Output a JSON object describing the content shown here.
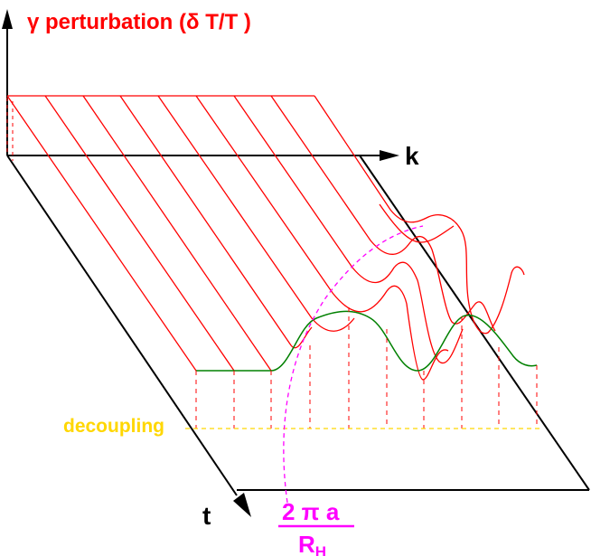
{
  "labels": {
    "y_axis": "γ perturbation  (δ T/T )",
    "k_axis": "k",
    "t_axis": "t",
    "decoupling": "decoupling",
    "horizon_numerator": "2 π a",
    "horizon_denominator_main": "R",
    "horizon_denominator_sub": "H"
  },
  "colors": {
    "axes": "#000000",
    "perturbation_lines": "#ff0000",
    "drop_lines": "#ff0000",
    "decoupling_curve": "#008000",
    "decoupling_line": "#ffd700",
    "horizon_curve": "#ff00ff",
    "y_label": "#ff0000",
    "decoupling_label": "#ffd700",
    "horizon_label": "#ff00ff"
  }
}
